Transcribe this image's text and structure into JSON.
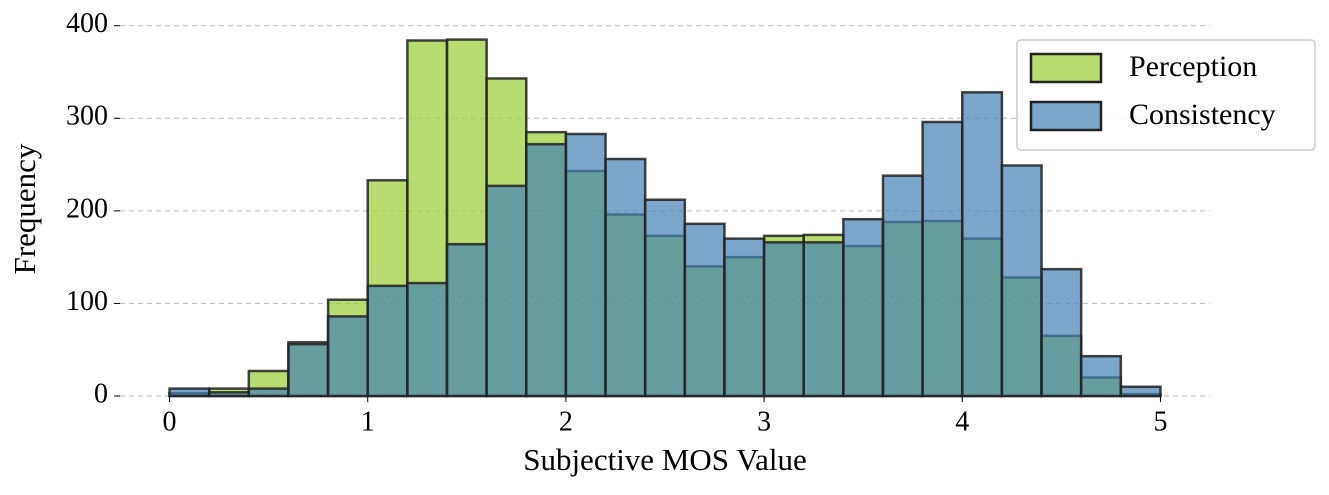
{
  "chart_data": {
    "type": "histogram",
    "xlabel": "Subjective MOS Value",
    "ylabel": "Frequency",
    "bins": [
      0,
      0.2,
      0.4,
      0.6,
      0.8,
      1.0,
      1.2,
      1.4,
      1.6,
      1.8,
      2.0,
      2.2,
      2.4,
      2.6,
      2.8,
      3.0,
      3.2,
      3.4,
      3.6,
      3.8,
      4.0,
      4.2,
      4.4,
      4.6,
      4.8,
      5.0
    ],
    "series": [
      {
        "name": "Perception",
        "color": "#9acd32",
        "values": [
          3,
          8,
          27,
          58,
          104,
          233,
          384,
          385,
          343,
          285,
          243,
          196,
          173,
          140,
          150,
          173,
          174,
          162,
          188,
          189,
          170,
          128,
          65,
          20,
          2
        ]
      },
      {
        "name": "Consistency",
        "color": "#4682b4",
        "values": [
          8,
          4,
          8,
          56,
          86,
          119,
          122,
          164,
          227,
          272,
          283,
          256,
          212,
          186,
          170,
          166,
          166,
          191,
          238,
          296,
          328,
          249,
          137,
          43,
          10
        ]
      }
    ],
    "xlim": [
      -0.25,
      5.25
    ],
    "ylim": [
      0,
      404
    ],
    "xticks": [
      0,
      1,
      2,
      3,
      4,
      5
    ],
    "yticks": [
      0,
      100,
      200,
      300,
      400
    ],
    "grid": true,
    "legend": "upper right"
  }
}
